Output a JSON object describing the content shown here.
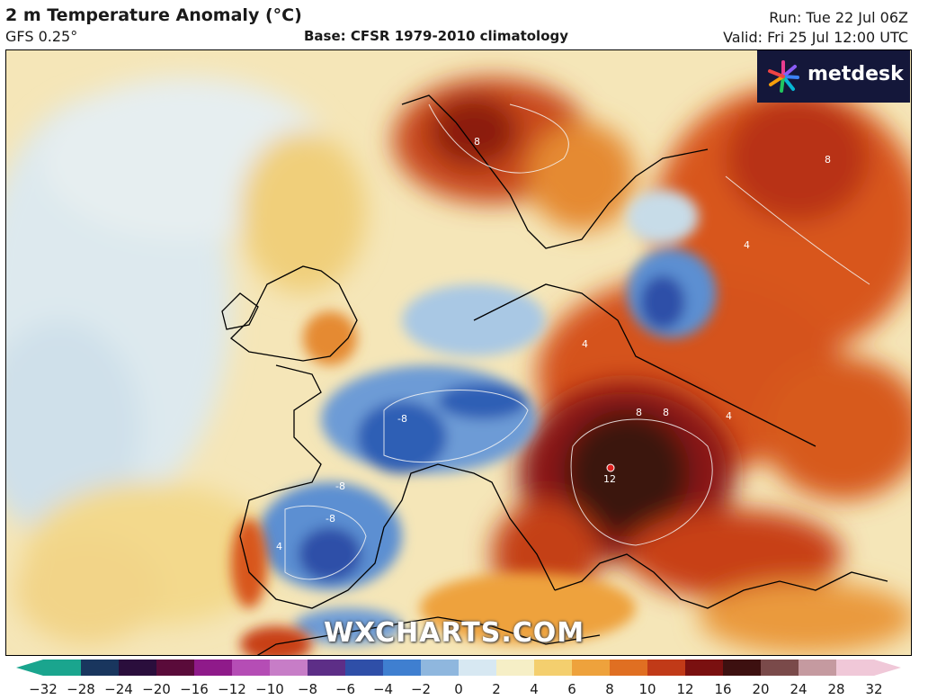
{
  "header": {
    "title": "2 m Temperature Anomaly (°C)",
    "model": "GFS 0.25°",
    "base": "Base: CFSR 1979-2010 climatology",
    "run": "Run: Tue 22 Jul 06Z",
    "valid": "Valid: Fri 25 Jul 12:00 UTC"
  },
  "logo": {
    "text": "metdesk",
    "icon": "metdesk-logo-icon"
  },
  "watermark": "WXCHARTS.COM",
  "contour_labels": [
    "8",
    "8",
    "4",
    "4",
    "-8",
    "-8",
    "-8",
    "8",
    "8",
    "12",
    "4",
    "4"
  ],
  "colorbar": {
    "min": -32,
    "max": 32,
    "ticks": [
      "−32",
      "−28",
      "−24",
      "−20",
      "−16",
      "−12",
      "−10",
      "−8",
      "−6",
      "−4",
      "−2",
      "0",
      "2",
      "4",
      "6",
      "8",
      "10",
      "12",
      "16",
      "20",
      "24",
      "28",
      "32"
    ],
    "colors": [
      "#1aa58e",
      "#19365e",
      "#2a0e3c",
      "#5a0b3a",
      "#8f1a8a",
      "#b54db5",
      "#c77dc7",
      "#5d2e87",
      "#2f4fa8",
      "#3f7fd0",
      "#8fb7de",
      "#d7e8f2",
      "#f6efc6",
      "#f4cf6e",
      "#eea23c",
      "#e06f22",
      "#c13a18",
      "#7a1010",
      "#3d1010",
      "#7a4a4a",
      "#c59aa0",
      "#f0c8d8"
    ]
  },
  "marker": {
    "color": "#e0201e"
  }
}
